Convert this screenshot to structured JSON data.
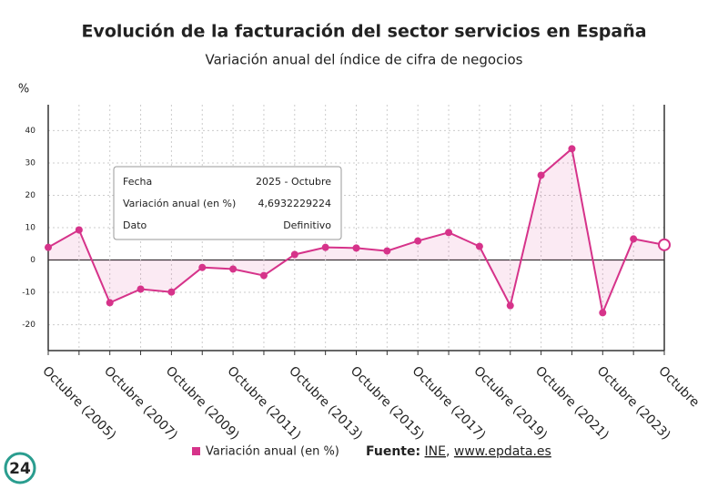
{
  "chart_data": {
    "type": "line",
    "title": "Evolución de la facturación del sector servicios en España",
    "subtitle": "Variación anual del índice de cifra de negocios",
    "y_label": "%",
    "categories": [
      "Octubre (2005)",
      null,
      "Octubre (2007)",
      null,
      "Octubre (2009)",
      null,
      "Octubre (2011)",
      null,
      "Octubre (2013)",
      null,
      "Octubre (2015)",
      null,
      "Octubre (2017)",
      null,
      "Octubre (2019)",
      null,
      "Octubre (2021)",
      null,
      "Octubre (2023)",
      null,
      "Octubre"
    ],
    "series": [
      {
        "name": "Variación anual (en %)",
        "color": "#d6338a",
        "values": [
          3.9,
          9.3,
          -13.2,
          -9.0,
          -9.9,
          -2.3,
          -2.8,
          -4.8,
          1.7,
          3.9,
          3.7,
          2.8,
          5.9,
          8.5,
          4.2,
          -14.1,
          26.2,
          34.4,
          -16.3,
          6.5,
          4.6932229224
        ]
      }
    ],
    "ylim": [
      -28,
      48
    ],
    "yticks": [
      -20,
      -10,
      0,
      10,
      20,
      30,
      40
    ],
    "grid": true,
    "tooltip": [
      [
        "Fecha",
        "2025 - Octubre"
      ],
      [
        "Variación anual (en %)",
        "4,6932229224"
      ],
      [
        "Dato",
        "Definitivo"
      ]
    ],
    "source_label": "Fuente:",
    "source_links": [
      "INE",
      "www.epdata.es"
    ],
    "logo": "24"
  }
}
